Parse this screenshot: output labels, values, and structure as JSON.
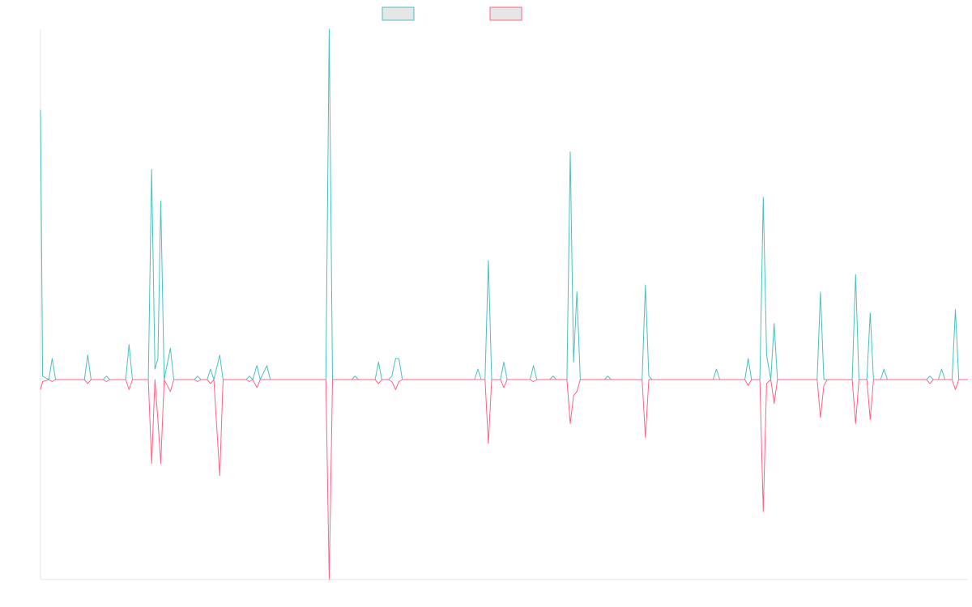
{
  "chart_data": {
    "type": "line",
    "title": "",
    "xlabel": "",
    "ylabel": "",
    "grid": false,
    "legend_position": "top-center",
    "ylim": [
      -1.0,
      1.0
    ],
    "series": [
      {
        "color": "#4bc0c0",
        "fill": "#e6e6e6",
        "points": [
          [
            0,
            0.77
          ],
          [
            0.5,
            0.01
          ],
          [
            2,
            0
          ],
          [
            2.8,
            0.06
          ],
          [
            3.6,
            0
          ],
          [
            10.5,
            0
          ],
          [
            11.3,
            0.07
          ],
          [
            12.1,
            0
          ],
          [
            15,
            0
          ],
          [
            15.8,
            0.01
          ],
          [
            16.6,
            0
          ],
          [
            20.4,
            0
          ],
          [
            21.2,
            0.1
          ],
          [
            22,
            0
          ],
          [
            25.8,
            0
          ],
          [
            26.6,
            0.6
          ],
          [
            27.4,
            0.03
          ],
          [
            28.1,
            0.06
          ],
          [
            28.8,
            0.51
          ],
          [
            29.6,
            0
          ],
          [
            31.1,
            0.09
          ],
          [
            31.9,
            0
          ],
          [
            36.8,
            0
          ],
          [
            37.6,
            0.01
          ],
          [
            38.4,
            0
          ],
          [
            39.9,
            0
          ],
          [
            40.7,
            0.03
          ],
          [
            41.5,
            0
          ],
          [
            42.9,
            0.07
          ],
          [
            43.7,
            0
          ],
          [
            49.2,
            0
          ],
          [
            50,
            0.01
          ],
          [
            50.8,
            0
          ],
          [
            51.8,
            0.04
          ],
          [
            52.6,
            0
          ],
          [
            54.2,
            0.04
          ],
          [
            55,
            0
          ],
          [
            68.3,
            0
          ],
          [
            69.1,
            1.0
          ],
          [
            69.9,
            0
          ],
          [
            74.5,
            0
          ],
          [
            75.3,
            0.01
          ],
          [
            76.1,
            0
          ],
          [
            80.1,
            0
          ],
          [
            80.9,
            0.05
          ],
          [
            81.7,
            0
          ],
          [
            83.3,
            0
          ],
          [
            84.1,
            0.01
          ],
          [
            85,
            0.06
          ],
          [
            85.8,
            0.06
          ],
          [
            86.6,
            0
          ],
          [
            103.9,
            0
          ],
          [
            104.7,
            0.03
          ],
          [
            105.5,
            0
          ],
          [
            106.4,
            0
          ],
          [
            107.2,
            0.34
          ],
          [
            108,
            0
          ],
          [
            110.1,
            0
          ],
          [
            110.9,
            0.05
          ],
          [
            111.7,
            0
          ],
          [
            117.2,
            0
          ],
          [
            118,
            0.04
          ],
          [
            118.8,
            0
          ],
          [
            121.9,
            0
          ],
          [
            122.7,
            0.01
          ],
          [
            123.5,
            0
          ],
          [
            126,
            0
          ],
          [
            126.8,
            0.65
          ],
          [
            127.6,
            0.05
          ],
          [
            128.4,
            0.25
          ],
          [
            129.2,
            0
          ],
          [
            135,
            0
          ],
          [
            135.8,
            0.01
          ],
          [
            136.6,
            0
          ],
          [
            144,
            0
          ],
          [
            144.8,
            0.27
          ],
          [
            145.6,
            0.01
          ],
          [
            146.4,
            0
          ],
          [
            161,
            0
          ],
          [
            161.8,
            0.03
          ],
          [
            162.6,
            0
          ],
          [
            168.6,
            0
          ],
          [
            169.4,
            0.06
          ],
          [
            170.2,
            0
          ],
          [
            172.2,
            0
          ],
          [
            173,
            0.52
          ],
          [
            173.8,
            0.07
          ],
          [
            174.8,
            0
          ],
          [
            175.6,
            0.16
          ],
          [
            176.4,
            0
          ],
          [
            178.2,
            0
          ],
          [
            185.9,
            0
          ],
          [
            186.7,
            0.25
          ],
          [
            187.5,
            0
          ],
          [
            194.3,
            0
          ],
          [
            195.1,
            0.3
          ],
          [
            195.9,
            0
          ],
          [
            197.8,
            0
          ],
          [
            198.6,
            0.19
          ],
          [
            199.4,
            0
          ],
          [
            201.1,
            0
          ],
          [
            201.9,
            0.03
          ],
          [
            202.7,
            0
          ],
          [
            212.1,
            0
          ],
          [
            212.9,
            0.01
          ],
          [
            213.7,
            0
          ],
          [
            214.9,
            0
          ],
          [
            215.7,
            0.03
          ],
          [
            216.5,
            0
          ],
          [
            218.2,
            0
          ],
          [
            219,
            0.2
          ],
          [
            219.8,
            0
          ],
          [
            222,
            0
          ]
        ]
      },
      {
        "color": "#ff6384",
        "fill": "#e6e6e6",
        "points": [
          [
            0,
            -0.05
          ],
          [
            0.5,
            -0.01
          ],
          [
            2,
            0
          ],
          [
            2.8,
            -0.01
          ],
          [
            3.6,
            0
          ],
          [
            10.5,
            0
          ],
          [
            11.3,
            -0.02
          ],
          [
            12.1,
            0
          ],
          [
            15,
            0
          ],
          [
            15.8,
            -0.01
          ],
          [
            16.6,
            0
          ],
          [
            20.4,
            0
          ],
          [
            21.2,
            -0.05
          ],
          [
            22,
            0
          ],
          [
            25.8,
            0
          ],
          [
            26.6,
            -0.42
          ],
          [
            27.4,
            0
          ],
          [
            28.1,
            -0.2
          ],
          [
            28.8,
            -0.42
          ],
          [
            29.6,
            0
          ],
          [
            31.1,
            -0.06
          ],
          [
            31.9,
            0
          ],
          [
            36.8,
            0
          ],
          [
            37.6,
            -0.01
          ],
          [
            38.4,
            0
          ],
          [
            39.9,
            0
          ],
          [
            40.7,
            -0.02
          ],
          [
            41.5,
            0
          ],
          [
            42.9,
            -0.48
          ],
          [
            43.7,
            0
          ],
          [
            49.2,
            0
          ],
          [
            50,
            -0.01
          ],
          [
            50.8,
            0
          ],
          [
            51.8,
            -0.04
          ],
          [
            52.6,
            0
          ],
          [
            54.2,
            0
          ],
          [
            55,
            0
          ],
          [
            68.3,
            0
          ],
          [
            69.1,
            -1.0
          ],
          [
            69.9,
            0
          ],
          [
            74.5,
            0
          ],
          [
            75.3,
            0
          ],
          [
            76.1,
            0
          ],
          [
            80.1,
            0
          ],
          [
            80.9,
            -0.02
          ],
          [
            81.7,
            0
          ],
          [
            83.3,
            0
          ],
          [
            84.1,
            -0.01
          ],
          [
            85,
            -0.05
          ],
          [
            85.8,
            -0.01
          ],
          [
            86.6,
            0
          ],
          [
            103.9,
            0
          ],
          [
            104.7,
            0
          ],
          [
            105.5,
            0
          ],
          [
            106.4,
            0
          ],
          [
            107.2,
            -0.32
          ],
          [
            108,
            0
          ],
          [
            110.1,
            0
          ],
          [
            110.9,
            -0.04
          ],
          [
            111.7,
            0
          ],
          [
            117.2,
            0
          ],
          [
            118,
            -0.01
          ],
          [
            118.8,
            0
          ],
          [
            121.9,
            0
          ],
          [
            122.7,
            0
          ],
          [
            123.5,
            0
          ],
          [
            126,
            0
          ],
          [
            126.8,
            -0.22
          ],
          [
            127.6,
            -0.08
          ],
          [
            128.4,
            -0.06
          ],
          [
            129.2,
            0
          ],
          [
            135,
            0
          ],
          [
            135.8,
            0
          ],
          [
            136.6,
            0
          ],
          [
            144,
            0
          ],
          [
            144.8,
            -0.29
          ],
          [
            145.6,
            0
          ],
          [
            146.4,
            0
          ],
          [
            161,
            0
          ],
          [
            161.8,
            0
          ],
          [
            162.6,
            0
          ],
          [
            168.6,
            0
          ],
          [
            169.4,
            -0.03
          ],
          [
            170.2,
            0
          ],
          [
            172.2,
            0
          ],
          [
            173,
            -0.66
          ],
          [
            173.8,
            -0.02
          ],
          [
            174.8,
            0
          ],
          [
            175.6,
            -0.12
          ],
          [
            176.4,
            0
          ],
          [
            178.2,
            0
          ],
          [
            185.9,
            0
          ],
          [
            186.7,
            -0.19
          ],
          [
            187.5,
            -0.03
          ],
          [
            188.3,
            0
          ],
          [
            194.3,
            0
          ],
          [
            195.1,
            -0.22
          ],
          [
            195.9,
            0
          ],
          [
            197.8,
            0
          ],
          [
            198.6,
            -0.2
          ],
          [
            199.4,
            0
          ],
          [
            201.1,
            0
          ],
          [
            201.9,
            0
          ],
          [
            202.7,
            0
          ],
          [
            212.1,
            0
          ],
          [
            212.9,
            -0.02
          ],
          [
            213.7,
            0
          ],
          [
            214.9,
            0
          ],
          [
            215.7,
            0
          ],
          [
            216.5,
            0
          ],
          [
            218.2,
            0
          ],
          [
            219,
            -0.05
          ],
          [
            219.8,
            0
          ],
          [
            222,
            0
          ]
        ]
      }
    ]
  }
}
